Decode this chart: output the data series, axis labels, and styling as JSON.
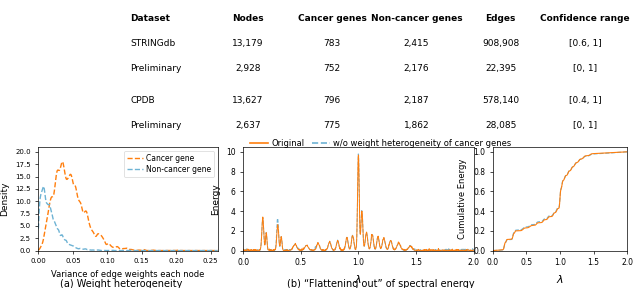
{
  "table": {
    "headers": [
      "Dataset",
      "Nodes",
      "Cancer genes",
      "Non-cancer genes",
      "Edges",
      "Confidence range"
    ],
    "rows": [
      [
        "STRINGdb",
        "13,179",
        "783",
        "2,415",
        "908,908",
        "[0.6, 1]"
      ],
      [
        "Preliminary",
        "2,928",
        "752",
        "2,176",
        "22,395",
        "[0, 1]"
      ],
      [
        "CPDB",
        "13,627",
        "796",
        "2,187",
        "578,140",
        "[0.4, 1]"
      ],
      [
        "Preliminary",
        "2,637",
        "775",
        "1,862",
        "28,085",
        "[0, 1]"
      ]
    ]
  },
  "orange_color": "#FF7F0E",
  "blue_dashed_color": "#6EB3D4",
  "fig_bg": "#FFFFFF",
  "subplot_a_title": "(a) Weight heterogeneity",
  "subplot_b_title": "(b) “Flattening out” of spectral energy",
  "legend_shared_label1": "Original",
  "legend_shared_label2": "w/o weight heterogeneity of cancer genes",
  "cancer_label": "Cancer gene",
  "noncancer_label": "Non-cancer gene"
}
